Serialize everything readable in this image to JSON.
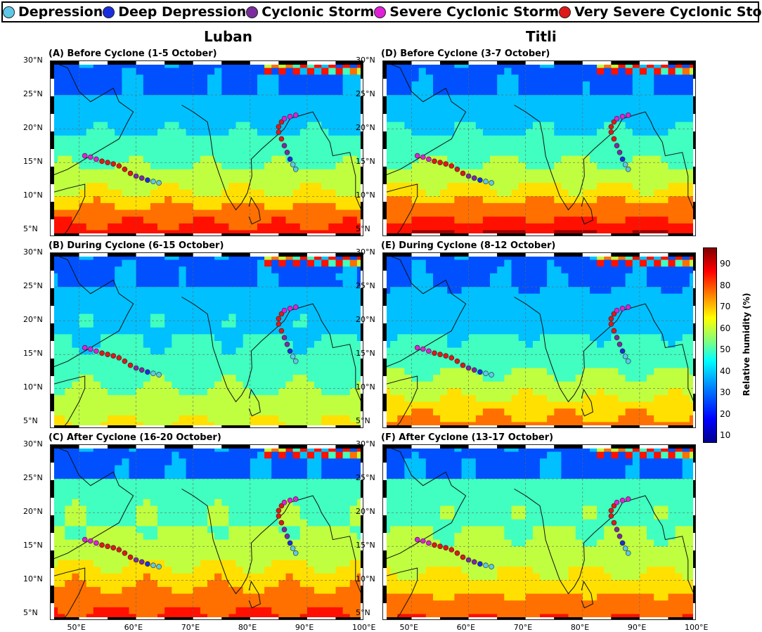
{
  "legend": [
    {
      "label": "Depression",
      "color": "#5ec8e8"
    },
    {
      "label": "Deep Depression",
      "color": "#1a2ee0"
    },
    {
      "label": "Cyclonic Storm",
      "color": "#7b2d9e"
    },
    {
      "label": "Severe Cyclonic Storm",
      "color": "#e020d8"
    },
    {
      "label": "Very Severe Cyclonic Storm",
      "color": "#e01818"
    }
  ],
  "columns": [
    "Luban",
    "Titli"
  ],
  "panels": [
    {
      "label": "(A) Before  Cyclone (1-5 October)",
      "humid_south": 0.9,
      "humid_north": 0.1
    },
    {
      "label": "(B) During Cyclone (6-15 October)",
      "humid_south": 0.6,
      "humid_north": 0.15
    },
    {
      "label": "(C) After Cyclone (16-20 October)",
      "humid_south": 0.85,
      "humid_north": 0.35
    },
    {
      "label": "(D) Before Cyclone (3-7 October)",
      "humid_south": 0.95,
      "humid_north": 0.1
    },
    {
      "label": "(E) During Cyclone (8-12 October)",
      "humid_south": 0.75,
      "humid_north": 0.1
    },
    {
      "label": "(F) After Cyclone (13-17 October)",
      "humid_south": 0.8,
      "humid_north": 0.35
    }
  ],
  "lat_ticks": [
    "30°N",
    "25°N",
    "20°N",
    "15°N",
    "10°N",
    "5°N"
  ],
  "lon_ticks": [
    "50°E",
    "60°E",
    "70°E",
    "80°E",
    "90°E",
    "100°E"
  ],
  "colorbar": {
    "ticks": [
      "90",
      "80",
      "70",
      "60",
      "50",
      "40",
      "30",
      "20",
      "10"
    ],
    "label": "Relative humidity (%)"
  },
  "tracks": {
    "luban": [
      [
        64,
        12
      ],
      [
        63,
        12.2
      ],
      [
        62,
        12.4
      ],
      [
        61,
        12.7
      ],
      [
        60,
        13
      ],
      [
        59,
        13.4
      ],
      [
        58,
        14
      ],
      [
        57,
        14.5
      ],
      [
        56,
        14.8
      ],
      [
        55,
        15
      ],
      [
        54,
        15.2
      ],
      [
        53,
        15.5
      ],
      [
        52,
        15.8
      ],
      [
        51,
        16
      ]
    ],
    "titli": [
      [
        88,
        14
      ],
      [
        87.5,
        14.7
      ],
      [
        87,
        15.5
      ],
      [
        86.5,
        16.5
      ],
      [
        86,
        17.5
      ],
      [
        85.5,
        18.5
      ],
      [
        85,
        19.5
      ],
      [
        85,
        20.3
      ],
      [
        85.5,
        21
      ],
      [
        86,
        21.5
      ],
      [
        87,
        21.8
      ],
      [
        88,
        22
      ]
    ]
  }
}
